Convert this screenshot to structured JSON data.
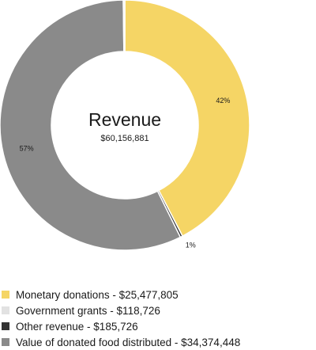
{
  "chart_data": {
    "type": "pie",
    "variant": "donut",
    "center_title": "Revenue",
    "center_value": "$60,156,881",
    "slices": [
      {
        "label": "Monetary donations - $25,477,805",
        "value": 25477805,
        "percent_label": "42%",
        "color": "#f5d565"
      },
      {
        "label": "Other revenue - $185,726",
        "value": 185726,
        "percent_label": "1%",
        "color": "#333333"
      },
      {
        "label": "Value of donated food distributed - $34,374,448",
        "value": 34374448,
        "percent_label": "57%",
        "color": "#8a8a8a"
      },
      {
        "label": "Government grants - $118,726",
        "value": 118726,
        "percent_label": "",
        "color": "#e2e2e2"
      }
    ],
    "legend": [
      {
        "label": "Monetary donations - $25,477,805",
        "color": "#f5d565"
      },
      {
        "label": "Government grants - $118,726",
        "color": "#e2e2e2"
      },
      {
        "label": "Other revenue - $185,726",
        "color": "#333333"
      },
      {
        "label": "Value of donated food distributed - $34,374,448",
        "color": "#8a8a8a"
      }
    ],
    "legend_position": "bottom-left"
  }
}
